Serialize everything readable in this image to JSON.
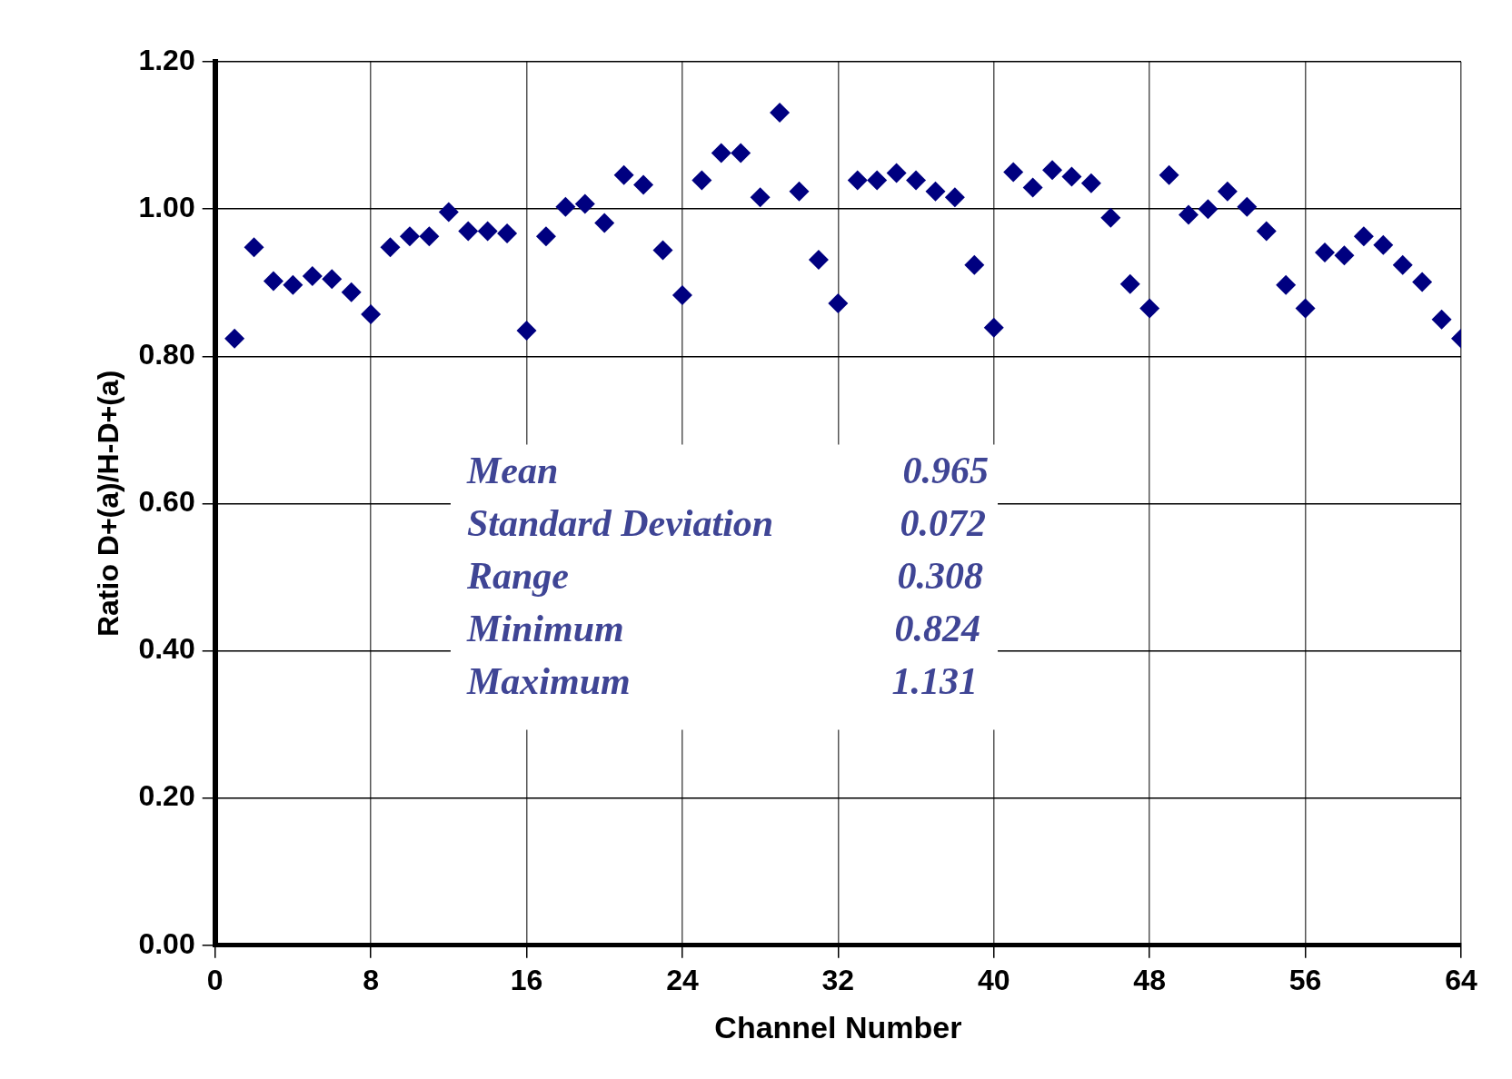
{
  "chart_data": {
    "type": "scatter",
    "xlabel": "Channel Number",
    "ylabel": "Ratio D+(a)/H-D+(a)",
    "x": [
      1,
      2,
      3,
      4,
      5,
      6,
      7,
      8,
      9,
      10,
      11,
      12,
      13,
      14,
      15,
      16,
      17,
      18,
      19,
      20,
      21,
      22,
      23,
      24,
      25,
      26,
      27,
      28,
      29,
      30,
      31,
      32,
      33,
      34,
      35,
      36,
      37,
      38,
      39,
      40,
      41,
      42,
      43,
      44,
      45,
      46,
      47,
      48,
      49,
      50,
      51,
      52,
      53,
      54,
      55,
      56,
      57,
      58,
      59,
      60,
      61,
      62,
      63,
      64
    ],
    "series": [
      {
        "color": "#000080",
        "values": [
          0.824,
          0.948,
          0.902,
          0.897,
          0.909,
          0.905,
          0.887,
          0.857,
          0.948,
          0.963,
          0.963,
          0.996,
          0.97,
          0.97,
          0.967,
          0.835,
          0.963,
          1.003,
          1.007,
          0.981,
          1.046,
          1.033,
          0.944,
          0.883,
          1.039,
          1.076,
          1.076,
          1.016,
          1.131,
          1.024,
          0.931,
          0.872,
          1.039,
          1.039,
          1.049,
          1.039,
          1.024,
          1.016,
          0.924,
          0.839,
          1.05,
          1.029,
          1.053,
          1.044,
          1.035,
          0.988,
          0.898,
          0.865,
          1.046,
          0.992,
          1.0,
          1.024,
          1.003,
          0.97,
          0.897,
          0.865,
          0.941,
          0.937,
          0.963,
          0.951,
          0.924,
          0.901,
          0.85,
          0.824
        ]
      }
    ],
    "xlim": [
      0,
      64
    ],
    "xticks": [
      0,
      8,
      16,
      24,
      32,
      40,
      48,
      56,
      64
    ],
    "ylim": [
      0,
      1.2
    ],
    "yticks": [
      {
        "value": 0,
        "label": "0.00"
      },
      {
        "value": 0.2,
        "label": "0.20"
      },
      {
        "value": 0.4,
        "label": "0.40"
      },
      {
        "value": 0.6,
        "label": "0.60"
      },
      {
        "value": 0.8,
        "label": "0.80"
      },
      {
        "value": 1.0,
        "label": "1.00"
      },
      {
        "value": 1.2,
        "label": "1.20"
      }
    ],
    "annotations": [
      "Mean 0.965",
      "Standard Deviation 0.072",
      "Range 0.308",
      "Minimum 0.824",
      "Maximum 1.131"
    ],
    "grid": true,
    "legend": false,
    "marker": "diamond"
  }
}
